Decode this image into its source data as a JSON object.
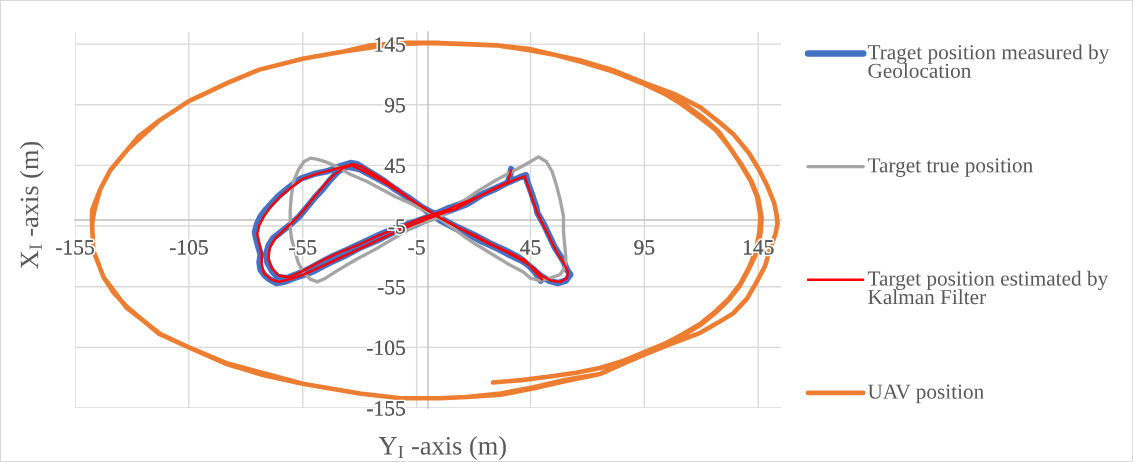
{
  "chart_data": {
    "type": "line",
    "xlabel": "Y$_{I}$ -axis (m)",
    "ylabel": "X$_{I}$ -axis (m)",
    "xlim": [
      -155,
      155
    ],
    "ylim": [
      -155,
      155
    ],
    "xticks": [
      -155,
      -105,
      -55,
      -5,
      45,
      95,
      145
    ],
    "yticks": [
      -155,
      -105,
      -55,
      -5,
      45,
      95,
      145
    ],
    "grid": true,
    "legend": "right",
    "series": [
      {
        "name": "Traget position measured by Geolocation",
        "color": "#4472c4",
        "x": [
          36.5,
          36,
          35,
          30,
          24,
          17,
          10,
          4,
          -3,
          -8,
          -15,
          -22.5,
          -30,
          -37,
          -44,
          -50,
          -54,
          -59,
          -63,
          -66.5,
          -69.5,
          -71.5,
          -73.5,
          -74,
          -73.5,
          -74.5,
          -75.5,
          -76,
          -75,
          -73.5,
          -71,
          -68.5,
          -65.5,
          -61,
          -56,
          -50,
          -44.5,
          -39,
          -34,
          -31,
          -25,
          -19,
          -15,
          -9,
          -3,
          1,
          6,
          12,
          17,
          24,
          31,
          36,
          41.5,
          46,
          49.5,
          53,
          57,
          60.5,
          62.5,
          61,
          59.5,
          57.5,
          55.5,
          54,
          52.5,
          51,
          49.5,
          48,
          47.5,
          46.5,
          45.5,
          44.5,
          43.5,
          43,
          40,
          34,
          27,
          20,
          14,
          8,
          2,
          -5,
          -12,
          -20,
          -28,
          -36,
          -42,
          -48,
          -53,
          -58,
          -62,
          -66,
          -68.5,
          -70.5,
          -71,
          -70,
          -68,
          -64,
          -60,
          -56.5,
          -53,
          -49.5,
          -46,
          -43,
          -39.5,
          -35.5,
          -30,
          -24,
          -17,
          -10,
          -4,
          2,
          7,
          13,
          20,
          27,
          34,
          40,
          44,
          47,
          49.5
        ],
        "values": [
          42,
          36,
          31,
          26,
          21,
          13,
          8,
          4,
          -2,
          -6,
          -10,
          -17,
          -23,
          -30,
          -36,
          -42,
          -45,
          -48,
          -51,
          -52,
          -49,
          -46,
          -41,
          -35,
          -28,
          -22,
          -15,
          -10,
          -3,
          3,
          9,
          14,
          20,
          27,
          34,
          38,
          40,
          44,
          47,
          46,
          39,
          32,
          26,
          19,
          11,
          5,
          -1,
          -7,
          -11,
          -18,
          -24,
          -29,
          -34,
          -40,
          -46,
          -50,
          -52,
          -50,
          -45,
          -41,
          -34,
          -28,
          -22,
          -16,
          -10,
          -4,
          1,
          6,
          11,
          16,
          22,
          27,
          32,
          37,
          35,
          30,
          24,
          18,
          13,
          9,
          4,
          -1,
          -5,
          -11,
          -18,
          -25,
          -30,
          -36,
          -41,
          -45,
          -48,
          -47,
          -42,
          -35,
          -28,
          -21,
          -15,
          -9,
          -3,
          3,
          11,
          19,
          26,
          33,
          40,
          44,
          42,
          36,
          29,
          20,
          12,
          6,
          0,
          -6,
          -12,
          -19,
          -25,
          -31,
          -37,
          -43,
          -50
        ]
      },
      {
        "name": "Target true position",
        "color": "#a5a5a5",
        "x": [
          5,
          12,
          22,
          30,
          37,
          43,
          48.5,
          52,
          54.5,
          56.5,
          58,
          59.5,
          59.5,
          60,
          60.5,
          60.5,
          59.5,
          58,
          53.5,
          49,
          45,
          42,
          35,
          28,
          21,
          15.5,
          9,
          3,
          -3,
          -8,
          -14,
          -20,
          -27,
          -34.5,
          -40,
          -45,
          -48.5,
          -51.5,
          -54.5,
          -57,
          -59,
          -60,
          -60.5,
          -60.5,
          -60,
          -58.5,
          -57,
          -54.5,
          -51.5,
          -48.5,
          -45,
          -40,
          -32,
          -23,
          -14,
          -5,
          5,
          12
        ],
        "values": [
          2,
          11,
          24,
          33,
          40,
          46,
          52,
          48,
          40,
          28,
          17,
          3,
          -10,
          -20,
          -30,
          -36,
          -41,
          -45,
          -48,
          -50,
          -48,
          -43,
          -36,
          -28,
          -20,
          -13,
          -4,
          4,
          9,
          14,
          19,
          25,
          32,
          38,
          44,
          48,
          50,
          51,
          48,
          41,
          32,
          20,
          8,
          -5,
          -15,
          -25,
          -35,
          -44,
          -49,
          -51,
          -48,
          -42,
          -33,
          -24,
          -14,
          -4,
          2,
          11
        ]
      },
      {
        "name": "Target position estimated by Kalman Filter",
        "color": "#ff0000",
        "x": [
          36.5,
          35.5,
          35,
          28,
          20,
          12,
          4,
          -4,
          -12,
          -20,
          -28,
          -36,
          -44,
          -51,
          -56,
          -61,
          -65.5,
          -69,
          -72,
          -73,
          -73,
          -74,
          -75,
          -74,
          -72,
          -69,
          -65,
          -60,
          -55,
          -49,
          -43,
          -37,
          -33,
          -29,
          -23,
          -16,
          -9,
          -2,
          4,
          10,
          17,
          25,
          33,
          40,
          46,
          50,
          54,
          58,
          61,
          61.5,
          59.5,
          57,
          54.5,
          52.5,
          50,
          48,
          46.5,
          45,
          43.5,
          42.5,
          38,
          31,
          23,
          15,
          8,
          1,
          -6,
          -14,
          -22,
          -30,
          -38,
          -45,
          -51,
          -56,
          -61,
          -65.5,
          -68.5,
          -70,
          -69.5,
          -67,
          -63,
          -59,
          -55.5,
          -52,
          -48.5,
          -45,
          -41.5,
          -37,
          -33.5,
          -28,
          -21,
          -14,
          -7,
          0,
          6,
          13,
          21,
          29,
          36,
          41,
          45,
          48.5,
          50,
          42
        ],
        "values": [
          41,
          35,
          31,
          25,
          17,
          9,
          4,
          -2,
          -8,
          -15,
          -22,
          -29,
          -36,
          -42,
          -46,
          -49,
          -51,
          -49,
          -44,
          -37,
          -28,
          -20,
          -12,
          -4,
          3,
          11,
          19,
          27,
          34,
          38,
          41,
          44,
          46,
          44,
          37,
          29,
          19,
          10,
          3,
          -3,
          -10,
          -18,
          -25,
          -32,
          -39,
          -46,
          -50,
          -51,
          -48,
          -43,
          -35,
          -28,
          -19,
          -11,
          -2,
          6,
          14,
          22,
          30,
          36,
          33,
          27,
          20,
          14,
          8,
          4,
          -1,
          -7,
          -13,
          -20,
          -26,
          -32,
          -38,
          -43,
          -47,
          -46,
          -40,
          -32,
          -23,
          -15,
          -8,
          -1,
          6,
          14,
          22,
          30,
          37,
          43,
          45,
          40,
          33,
          25,
          16,
          8,
          1,
          -6,
          -13,
          -21,
          -27,
          -32,
          -38,
          -45,
          -49,
          -32
        ]
      },
      {
        "name": "UAV position",
        "color": "#ed7d31",
        "x": [
          28.5,
          41,
          53.5,
          65,
          75.5,
          86,
          95,
          104,
          112,
          120,
          126.5,
          132,
          137,
          141,
          144,
          145.5,
          146,
          144.5,
          141.5,
          137,
          132,
          126.5,
          119,
          111,
          103,
          95,
          82,
          68,
          56,
          44.5,
          30,
          17,
          5,
          -12,
          -25,
          -37,
          -55,
          -74,
          -88,
          -105,
          -118,
          -127,
          -132,
          -139.5,
          -144,
          -146.5,
          -147.5,
          -147,
          -142.5,
          -138,
          -132,
          -118,
          -105,
          -88,
          -72,
          -55,
          -30,
          -12,
          5,
          17,
          32,
          46,
          60,
          75.5,
          85,
          95,
          107,
          119.5,
          127,
          134,
          140,
          144,
          148,
          150,
          152.5,
          153.5,
          153,
          152,
          149,
          145.5,
          141,
          134,
          127,
          119.5,
          108,
          95,
          82,
          68,
          56,
          44.5,
          30,
          17,
          0,
          -15,
          -37,
          -55,
          -74,
          -88,
          -105,
          -118,
          -132,
          -139.5,
          -144,
          -147.5,
          -147.5,
          -147,
          -142.5,
          -132.5,
          -117.5,
          -105,
          -88.5,
          -55,
          -30,
          -12,
          5,
          17,
          32,
          46,
          60,
          75.5,
          85,
          95,
          104,
          112,
          120,
          126.5,
          132,
          137,
          141,
          144.5,
          146,
          146.5,
          145,
          142,
          137.5,
          132.5,
          127.5,
          121,
          113,
          104,
          95
        ],
        "values": [
          -134,
          -132,
          -129,
          -126,
          -122,
          -116,
          -109,
          -102,
          -94,
          -85,
          -75,
          -65,
          -53,
          -39,
          -25,
          -10,
          3,
          19,
          33,
          47,
          61,
          74,
          85,
          96,
          105,
          112,
          122,
          130,
          136,
          140,
          144,
          145,
          146,
          146,
          144,
          139,
          133,
          124,
          113,
          98,
          82,
          69,
          58,
          41,
          25,
          8,
          -3,
          -25,
          -47,
          -60,
          -72,
          -94,
          -105,
          -119,
          -128,
          -135,
          -143,
          -147,
          -147,
          -146,
          -144,
          -139,
          -133,
          -127,
          -119,
          -111,
          -102,
          -93,
          -85,
          -77,
          -65,
          -52,
          -38,
          -25,
          -12,
          -3,
          5,
          14,
          28,
          41,
          55,
          71,
          82,
          93,
          104,
          113,
          123,
          131,
          136,
          141,
          144,
          145,
          146,
          145,
          139,
          133,
          124,
          113,
          98,
          82,
          58,
          41,
          25,
          8,
          -3,
          -25,
          -47,
          -72,
          -94,
          -105,
          -118,
          -135,
          -143,
          -147,
          -147,
          -146,
          -143,
          -138,
          -132,
          -127,
          -118,
          -110,
          -102,
          -95,
          -86,
          -76,
          -66,
          -54,
          -40,
          -26,
          -11,
          2,
          18,
          32,
          46,
          60,
          73,
          84,
          95,
          104,
          112
        ]
      }
    ]
  }
}
